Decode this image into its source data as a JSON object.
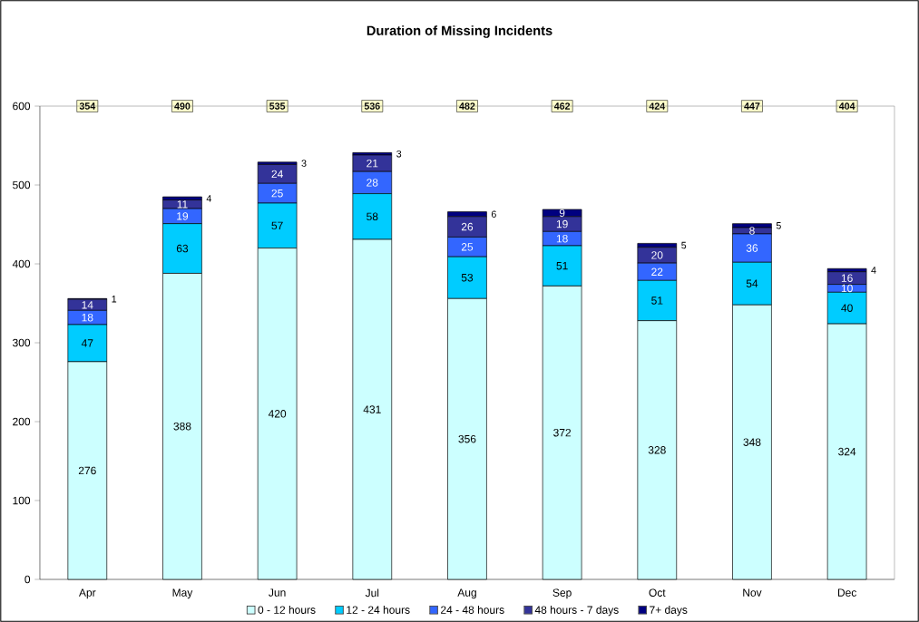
{
  "chart_data": {
    "type": "bar",
    "title": "Duration of Missing Incidents",
    "stacked": true,
    "categories": [
      "Apr",
      "May",
      "Jun",
      "Jul",
      "Aug",
      "Sep",
      "Oct",
      "Nov",
      "Dec"
    ],
    "series": [
      {
        "name": "0 - 12 hours",
        "color": "#ccffff",
        "values": [
          276,
          388,
          420,
          431,
          356,
          372,
          328,
          348,
          324
        ]
      },
      {
        "name": "12 - 24 hours",
        "color": "#00ccff",
        "values": [
          47,
          63,
          57,
          58,
          53,
          51,
          51,
          54,
          40
        ]
      },
      {
        "name": "24 - 48 hours",
        "color": "#3366ff",
        "values": [
          18,
          19,
          25,
          28,
          25,
          18,
          22,
          36,
          10
        ]
      },
      {
        "name": "48 hours - 7 days",
        "color": "#333399",
        "values": [
          14,
          11,
          24,
          21,
          26,
          19,
          20,
          8,
          16
        ]
      },
      {
        "name": "7+ days",
        "color": "#000080",
        "values": [
          1,
          4,
          3,
          3,
          6,
          9,
          5,
          5,
          4
        ]
      }
    ],
    "annotations": [
      {
        "text": "354",
        "x": "Apr",
        "y": 600
      },
      {
        "text": "490",
        "x": "May",
        "y": 600
      },
      {
        "text": "535",
        "x": "Jun",
        "y": 600
      },
      {
        "text": "536",
        "x": "Jul",
        "y": 600
      },
      {
        "text": "482",
        "x": "Aug",
        "y": 600
      },
      {
        "text": "462",
        "x": "Sep",
        "y": 600
      },
      {
        "text": "424",
        "x": "Oct",
        "y": 600
      },
      {
        "text": "447",
        "x": "Nov",
        "y": 600
      },
      {
        "text": "404",
        "x": "Dec",
        "y": 600
      }
    ],
    "ylim": [
      0,
      600
    ],
    "yticks": [
      0,
      100,
      200,
      300,
      400,
      500,
      600
    ],
    "data_labels": true,
    "legend": "bottom",
    "grid": false
  }
}
